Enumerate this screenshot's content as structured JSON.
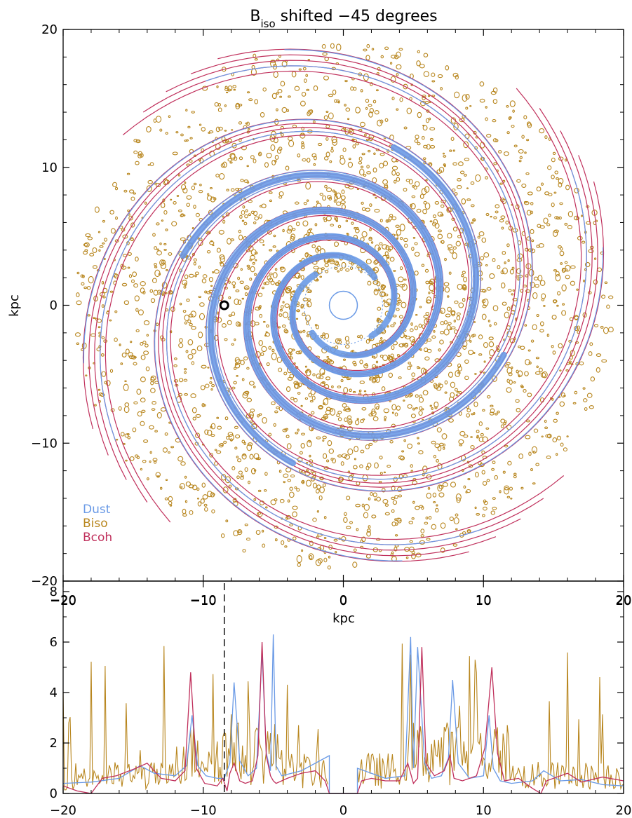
{
  "figure": {
    "title_main": "B",
    "title_sub": "iso",
    "title_rest": " shifted −45 degrees"
  },
  "colors": {
    "dust": "#6a9ae6",
    "biso": "#b8861e",
    "bcoh": "#c0305c",
    "sun_marker": "#000000",
    "axes": "#000000"
  },
  "chart_data": [
    {
      "type": "contour map",
      "xlabel": "kpc",
      "ylabel": "kpc",
      "xlim": [
        -20,
        20
      ],
      "ylim": [
        -20,
        20
      ],
      "xticks": [
        -20,
        -10,
        0,
        10,
        20
      ],
      "yticks": [
        -20,
        -10,
        0,
        10,
        20
      ],
      "grid": false,
      "legend": {
        "placement": "bottom-left",
        "entries": [
          {
            "label": "Dust",
            "color_key": "dust"
          },
          {
            "label": "Biso",
            "color_key": "biso"
          },
          {
            "label": "Bcoh",
            "color_key": "bcoh"
          }
        ]
      },
      "marker": {
        "x": -8.5,
        "y": 0,
        "shape": "open circle"
      },
      "arms": {
        "count": 4,
        "pitch_angle_deg": 11.5,
        "inner_radius_kpc": 3,
        "outer_radius_kpc": 20
      }
    },
    {
      "type": "line",
      "xlim": [
        -20,
        20
      ],
      "ylim": [
        0,
        8
      ],
      "xticks": [
        -20,
        -10,
        0,
        10,
        20
      ],
      "yticks": [
        0,
        2,
        4,
        6,
        8
      ],
      "vline_x": -8.5,
      "grid": false,
      "series": [
        {
          "color_key": "dust",
          "x": [
            -20,
            -18,
            -16,
            -14.5,
            -13.5,
            -12,
            -11.2,
            -10.8,
            -10.4,
            -9.8,
            -9,
            -8.5,
            -8.1,
            -7.8,
            -7.4,
            -6.8,
            -6.2,
            -5.8,
            -5.5,
            -5.2,
            -5,
            -4.8,
            -4.4,
            -3,
            -1,
            -1,
            1,
            1,
            3,
            4.4,
            4.8,
            5,
            5.3,
            5.8,
            6.3,
            7,
            7.5,
            7.8,
            8.2,
            9,
            10,
            10.4,
            10.7,
            11.2,
            12,
            13.5,
            14.3,
            15.5,
            17,
            18.5,
            20
          ],
          "y": [
            0.4,
            0.45,
            0.6,
            1.1,
            0.8,
            0.7,
            1.1,
            3.1,
            1.1,
            0.7,
            0.6,
            0.6,
            1.2,
            4.4,
            1.3,
            0.7,
            1.0,
            5.6,
            1.6,
            0.9,
            6.3,
            1.1,
            0.7,
            0.9,
            1.5,
            0,
            0,
            1.0,
            0.6,
            0.7,
            6.2,
            1.0,
            5.8,
            1.2,
            0.6,
            0.7,
            1.4,
            4.5,
            1.2,
            0.6,
            0.7,
            3.1,
            1.0,
            0.5,
            0.4,
            0.5,
            0.9,
            0.5,
            0.55,
            0.35,
            0.3
          ]
        },
        {
          "color_key": "bcoh",
          "x": [
            -20,
            -19,
            -18,
            -17.2,
            -16.2,
            -14.8,
            -14,
            -13,
            -12,
            -11.3,
            -10.9,
            -10.5,
            -9.9,
            -9,
            -8.6,
            -8.3,
            -8.1,
            -7.8,
            -7.4,
            -7,
            -6.5,
            -6.1,
            -5.8,
            -5.5,
            -5.2,
            -5,
            -4.8,
            -4,
            -3,
            -2,
            -1.3,
            -1,
            1,
            1.3,
            2,
            3,
            4,
            4.6,
            5,
            5.3,
            5.6,
            5.9,
            6.5,
            7.2,
            7.6,
            7.9,
            8.5,
            9.5,
            10.1,
            10.6,
            11,
            11.5,
            12.5,
            13.5,
            14.1,
            14.5,
            15,
            16,
            17,
            18.5,
            20
          ],
          "y": [
            0.3,
            0.1,
            0.0,
            0.6,
            0.7,
            1.0,
            1.2,
            0.6,
            0.5,
            0.9,
            4.8,
            1.0,
            0.4,
            0.3,
            0.6,
            0.1,
            0.8,
            1.2,
            0.5,
            0.4,
            0.5,
            1.5,
            6.0,
            1.5,
            0.7,
            0.5,
            0.4,
            0.6,
            0.8,
            0.9,
            0.5,
            0,
            0,
            0.5,
            0.6,
            0.5,
            0.5,
            1.2,
            0.4,
            0.6,
            5.8,
            1.2,
            0.7,
            0.9,
            1.5,
            0.6,
            0.5,
            0.7,
            1.8,
            5.0,
            1.6,
            0.5,
            0.6,
            0.2,
            0.0,
            0.5,
            0.6,
            0.8,
            0.45,
            0.65,
            0.5
          ]
        }
      ],
      "biso_series": {
        "color_key": "biso",
        "x_range": [
          -20,
          20
        ],
        "gap": [
          -1,
          1
        ],
        "typical": 0.9,
        "max": 6.2
      }
    }
  ]
}
